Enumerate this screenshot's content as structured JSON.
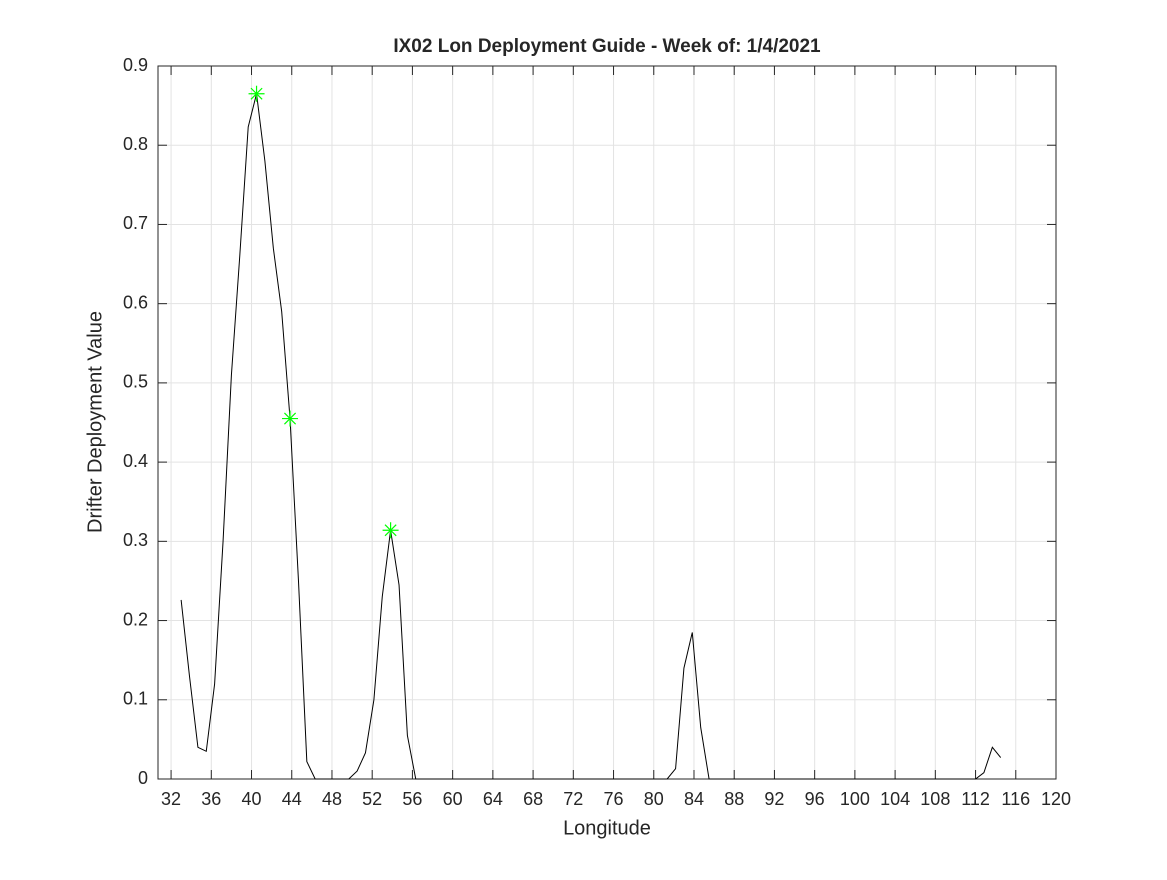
{
  "chart_data": {
    "type": "line",
    "title": "IX02 Lon Deployment Guide - Week of: 1/4/2021",
    "xlabel": "Longitude",
    "ylabel": "Drifter Deployment Value",
    "xlim": [
      30.7,
      120
    ],
    "ylim": [
      0,
      0.9
    ],
    "xticks": [
      32,
      36,
      40,
      44,
      48,
      52,
      56,
      60,
      64,
      68,
      72,
      76,
      80,
      84,
      88,
      92,
      96,
      100,
      104,
      108,
      112,
      116,
      120
    ],
    "yticks": [
      0,
      0.1,
      0.2,
      0.3,
      0.4,
      0.5,
      0.6,
      0.7,
      0.8,
      0.9
    ],
    "grid": true,
    "series": [
      {
        "color": "#000000",
        "marker": "none",
        "x": [
          33.0,
          33.83,
          34.67,
          35.5,
          36.33,
          37.17,
          38.0,
          38.83,
          39.67,
          40.5,
          41.33,
          42.17,
          43.0,
          43.83,
          44.67,
          45.5,
          46.33,
          49.67,
          50.5,
          51.33,
          52.17,
          53.0,
          53.83,
          54.67,
          55.5,
          56.33,
          81.33,
          82.17,
          83.0,
          83.83,
          84.67,
          85.5,
          112.0,
          112.83,
          113.67,
          114.5
        ],
        "values": [
          0.226,
          0.13,
          0.04,
          0.035,
          0.12,
          0.3,
          0.51,
          0.66,
          0.823,
          0.865,
          0.78,
          0.67,
          0.59,
          0.455,
          0.25,
          0.022,
          0,
          0,
          0.01,
          0.033,
          0.1,
          0.23,
          0.314,
          0.245,
          0.055,
          0,
          0,
          0.013,
          0.14,
          0.185,
          0.065,
          0,
          0,
          0.008,
          0.04,
          0.027
        ]
      },
      {
        "color": "#00ff00",
        "marker": "star",
        "x": [
          40.5,
          43.83,
          53.83
        ],
        "values": [
          0.865,
          0.455,
          0.314
        ]
      }
    ]
  }
}
